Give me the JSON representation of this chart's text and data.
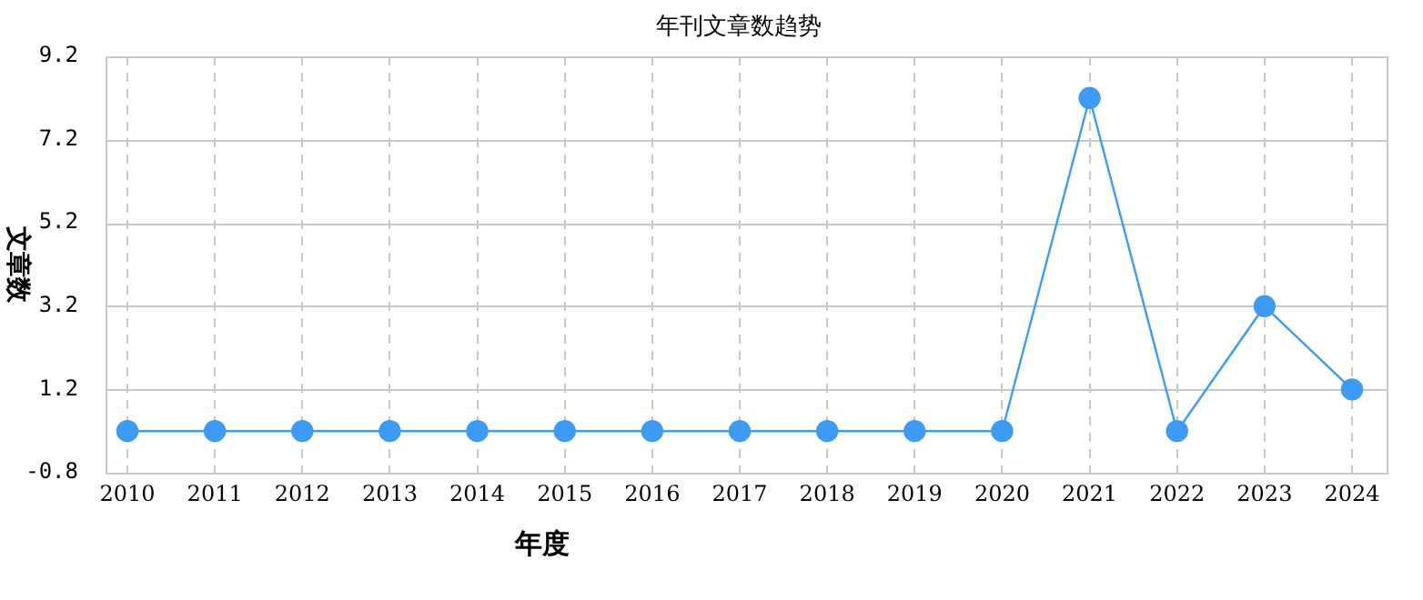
{
  "chart_data": {
    "type": "line",
    "title": "年刊文章数趋势",
    "xlabel": "年度",
    "ylabel": "文章数",
    "categories": [
      "2010",
      "2011",
      "2012",
      "2013",
      "2014",
      "2015",
      "2016",
      "2017",
      "2018",
      "2019",
      "2020",
      "2021",
      "2022",
      "2023",
      "2024"
    ],
    "series": [
      {
        "color": "#3d9bf5",
        "values": [
          0.2,
          0.2,
          0.2,
          0.2,
          0.2,
          0.2,
          0.2,
          0.2,
          0.2,
          0.2,
          0.2,
          8.2,
          0.2,
          3.2,
          1.2
        ]
      }
    ],
    "ylim": [
      -0.8,
      9.2
    ],
    "yticks": [
      -0.8,
      1.2,
      3.2,
      5.2,
      7.2,
      9.2
    ],
    "grid": true,
    "legend": false,
    "marker": "circle",
    "line_style": "solid"
  }
}
